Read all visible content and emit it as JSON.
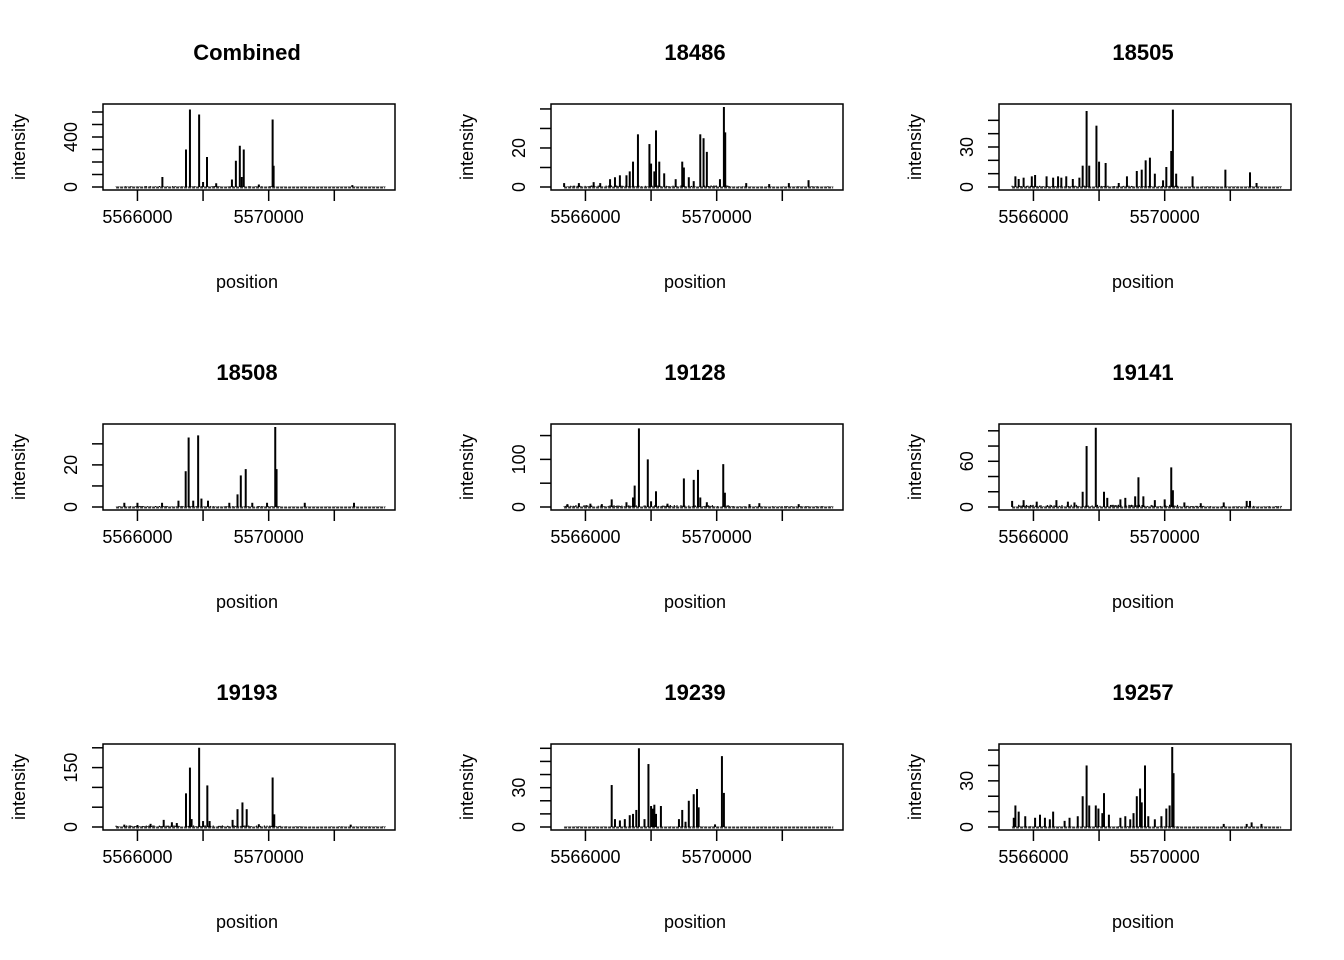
{
  "figure": {
    "layout": "3x3 grid of intensity-vs-position spike plots"
  },
  "chart_data": [
    {
      "type": "bar",
      "title": "Combined",
      "xlabel": "position",
      "ylabel": "intensity",
      "xlim": [
        5564950,
        5573850
      ],
      "ylim": [
        0,
        640
      ],
      "x_ticks": [
        5566000,
        5568000,
        5570000,
        5572000
      ],
      "x_tick_labels": [
        "5566000",
        "",
        "5570000",
        ""
      ],
      "y_ticks": [
        0,
        100,
        200,
        300,
        400,
        500,
        600
      ],
      "y_tick_labels": [
        "0",
        "",
        "",
        "",
        "400",
        "",
        ""
      ],
      "background_level": 8,
      "peaks": [
        [
          5566760,
          80
        ],
        [
          5567480,
          300
        ],
        [
          5567600,
          620
        ],
        [
          5567880,
          580
        ],
        [
          5568000,
          40
        ],
        [
          5568120,
          240
        ],
        [
          5568400,
          30
        ],
        [
          5568880,
          60
        ],
        [
          5569000,
          210
        ],
        [
          5569120,
          330
        ],
        [
          5569180,
          80
        ],
        [
          5569240,
          300
        ],
        [
          5569700,
          20
        ],
        [
          5570120,
          540
        ],
        [
          5570150,
          170
        ],
        [
          5572550,
          15
        ]
      ]
    },
    {
      "type": "bar",
      "title": "18486",
      "xlabel": "position",
      "ylabel": "intensity",
      "xlim": [
        5564950,
        5573850
      ],
      "ylim": [
        0,
        41
      ],
      "x_ticks": [
        5566000,
        5568000,
        5570000,
        5572000
      ],
      "x_tick_labels": [
        "5566000",
        "",
        "5570000",
        ""
      ],
      "y_ticks": [
        0,
        10,
        20,
        30,
        40
      ],
      "y_tick_labels": [
        "0",
        "",
        "20",
        "",
        ""
      ],
      "background_level": 0.8,
      "peaks": [
        [
          5565350,
          2
        ],
        [
          5565800,
          2
        ],
        [
          5566250,
          2.5
        ],
        [
          5566450,
          2
        ],
        [
          5566750,
          4
        ],
        [
          5566900,
          5
        ],
        [
          5567050,
          6
        ],
        [
          5567250,
          6
        ],
        [
          5567350,
          8
        ],
        [
          5567450,
          13
        ],
        [
          5567600,
          27
        ],
        [
          5567950,
          22
        ],
        [
          5568000,
          12
        ],
        [
          5568100,
          8
        ],
        [
          5568150,
          29
        ],
        [
          5568250,
          13
        ],
        [
          5568400,
          7
        ],
        [
          5568750,
          4
        ],
        [
          5568950,
          13
        ],
        [
          5569000,
          10
        ],
        [
          5569150,
          5
        ],
        [
          5569300,
          3
        ],
        [
          5569500,
          27
        ],
        [
          5569600,
          25
        ],
        [
          5569700,
          18
        ],
        [
          5570100,
          4
        ],
        [
          5570220,
          41
        ],
        [
          5570260,
          28
        ],
        [
          5570900,
          2
        ],
        [
          5571600,
          1.5
        ],
        [
          5572200,
          2
        ],
        [
          5572800,
          3.5
        ]
      ]
    },
    {
      "type": "bar",
      "title": "18505",
      "xlabel": "position",
      "ylabel": "intensity",
      "xlim": [
        5564950,
        5573850
      ],
      "ylim": [
        0,
        60
      ],
      "x_ticks": [
        5566000,
        5568000,
        5570000,
        5572000
      ],
      "x_tick_labels": [
        "5566000",
        "",
        "5570000",
        ""
      ],
      "y_ticks": [
        0,
        10,
        20,
        30,
        40,
        50
      ],
      "y_tick_labels": [
        "0",
        "",
        "",
        "30",
        "",
        ""
      ],
      "background_level": 1,
      "peaks": [
        [
          5565450,
          8
        ],
        [
          5565550,
          6
        ],
        [
          5565700,
          7
        ],
        [
          5565950,
          8
        ],
        [
          5566050,
          9
        ],
        [
          5566400,
          8
        ],
        [
          5566600,
          7
        ],
        [
          5566750,
          8
        ],
        [
          5566850,
          7
        ],
        [
          5567000,
          8
        ],
        [
          5567200,
          6
        ],
        [
          5567400,
          7
        ],
        [
          5567500,
          16
        ],
        [
          5567620,
          57
        ],
        [
          5567700,
          16
        ],
        [
          5567920,
          46
        ],
        [
          5568000,
          19
        ],
        [
          5568200,
          18
        ],
        [
          5568600,
          3
        ],
        [
          5568850,
          8
        ],
        [
          5569150,
          12
        ],
        [
          5569300,
          13
        ],
        [
          5569420,
          20
        ],
        [
          5569550,
          22
        ],
        [
          5569700,
          10
        ],
        [
          5569950,
          5
        ],
        [
          5570050,
          15
        ],
        [
          5570200,
          27
        ],
        [
          5570250,
          58
        ],
        [
          5570350,
          10
        ],
        [
          5570850,
          8
        ],
        [
          5571850,
          13
        ],
        [
          5572600,
          11
        ],
        [
          5572800,
          3
        ]
      ]
    },
    {
      "type": "bar",
      "title": "18508",
      "xlabel": "position",
      "ylabel": "intensity",
      "xlim": [
        5564950,
        5573850
      ],
      "ylim": [
        0,
        38
      ],
      "x_ticks": [
        5566000,
        5568000,
        5570000,
        5572000
      ],
      "x_tick_labels": [
        "5566000",
        "",
        "5570000",
        ""
      ],
      "y_ticks": [
        0,
        10,
        20,
        30
      ],
      "y_tick_labels": [
        "0",
        "",
        "20",
        ""
      ],
      "background_level": 0.5,
      "peaks": [
        [
          5565600,
          2
        ],
        [
          5566000,
          2
        ],
        [
          5566750,
          2
        ],
        [
          5567250,
          3
        ],
        [
          5567470,
          17
        ],
        [
          5567560,
          33
        ],
        [
          5567700,
          3
        ],
        [
          5567850,
          34
        ],
        [
          5567950,
          4
        ],
        [
          5568150,
          3
        ],
        [
          5568800,
          2
        ],
        [
          5569050,
          6
        ],
        [
          5569150,
          15
        ],
        [
          5569300,
          18
        ],
        [
          5569500,
          2
        ],
        [
          5569950,
          2
        ],
        [
          5570200,
          38
        ],
        [
          5570240,
          18
        ],
        [
          5571100,
          2
        ],
        [
          5572600,
          2
        ]
      ]
    },
    {
      "type": "bar",
      "title": "19128",
      "xlabel": "position",
      "ylabel": "intensity",
      "xlim": [
        5564950,
        5573850
      ],
      "ylim": [
        0,
        168
      ],
      "x_ticks": [
        5566000,
        5568000,
        5570000,
        5572000
      ],
      "x_tick_labels": [
        "5566000",
        "",
        "5570000",
        ""
      ],
      "y_ticks": [
        0,
        50,
        100,
        150
      ],
      "y_tick_labels": [
        "0",
        "",
        "100",
        ""
      ],
      "background_level": 4,
      "peaks": [
        [
          5565450,
          6
        ],
        [
          5565800,
          8
        ],
        [
          5566150,
          7
        ],
        [
          5566500,
          6
        ],
        [
          5566800,
          16
        ],
        [
          5567250,
          10
        ],
        [
          5567450,
          20
        ],
        [
          5567500,
          45
        ],
        [
          5567630,
          165
        ],
        [
          5567900,
          100
        ],
        [
          5568000,
          12
        ],
        [
          5568150,
          33
        ],
        [
          5568500,
          7
        ],
        [
          5569000,
          60
        ],
        [
          5569300,
          57
        ],
        [
          5569430,
          78
        ],
        [
          5569500,
          20
        ],
        [
          5569700,
          10
        ],
        [
          5570200,
          90
        ],
        [
          5570250,
          30
        ],
        [
          5571000,
          6
        ],
        [
          5571300,
          8
        ],
        [
          5572500,
          6
        ]
      ]
    },
    {
      "type": "bar",
      "title": "19141",
      "xlabel": "position",
      "ylabel": "intensity",
      "xlim": [
        5564950,
        5573850
      ],
      "ylim": [
        0,
        105
      ],
      "x_ticks": [
        5566000,
        5568000,
        5570000,
        5572000
      ],
      "x_tick_labels": [
        "5566000",
        "",
        "5570000",
        ""
      ],
      "y_ticks": [
        0,
        20,
        40,
        60,
        80,
        100
      ],
      "y_tick_labels": [
        "0",
        "",
        "",
        "60",
        "",
        ""
      ],
      "background_level": 3,
      "peaks": [
        [
          5565350,
          8
        ],
        [
          5565700,
          9
        ],
        [
          5566100,
          7
        ],
        [
          5566700,
          9
        ],
        [
          5567050,
          7
        ],
        [
          5567250,
          6
        ],
        [
          5567500,
          20
        ],
        [
          5567620,
          80
        ],
        [
          5567900,
          104
        ],
        [
          5568150,
          20
        ],
        [
          5568250,
          12
        ],
        [
          5568650,
          10
        ],
        [
          5568800,
          12
        ],
        [
          5569100,
          14
        ],
        [
          5569200,
          39
        ],
        [
          5569350,
          14
        ],
        [
          5569700,
          9
        ],
        [
          5570000,
          10
        ],
        [
          5570200,
          52
        ],
        [
          5570250,
          22
        ],
        [
          5570600,
          6
        ],
        [
          5571100,
          5
        ],
        [
          5571800,
          6
        ],
        [
          5572500,
          8
        ],
        [
          5572600,
          8
        ]
      ]
    },
    {
      "type": "bar",
      "title": "19193",
      "xlabel": "position",
      "ylabel": "intensity",
      "xlim": [
        5564950,
        5573850
      ],
      "ylim": [
        0,
        202
      ],
      "x_ticks": [
        5566000,
        5568000,
        5570000,
        5572000
      ],
      "x_tick_labels": [
        "5566000",
        "",
        "5570000",
        ""
      ],
      "y_ticks": [
        0,
        50,
        100,
        150,
        200
      ],
      "y_tick_labels": [
        "0",
        "",
        "",
        "150",
        ""
      ],
      "background_level": 4,
      "peaks": [
        [
          5565600,
          6
        ],
        [
          5566000,
          5
        ],
        [
          5566400,
          8
        ],
        [
          5566800,
          18
        ],
        [
          5567050,
          12
        ],
        [
          5567200,
          10
        ],
        [
          5567480,
          85
        ],
        [
          5567600,
          150
        ],
        [
          5567650,
          20
        ],
        [
          5567880,
          200
        ],
        [
          5568000,
          15
        ],
        [
          5568130,
          105
        ],
        [
          5568200,
          15
        ],
        [
          5568900,
          18
        ],
        [
          5569050,
          45
        ],
        [
          5569200,
          62
        ],
        [
          5569330,
          45
        ],
        [
          5569700,
          7
        ],
        [
          5570120,
          125
        ],
        [
          5570170,
          32
        ],
        [
          5572500,
          6
        ]
      ]
    },
    {
      "type": "bar",
      "title": "19239",
      "xlabel": "position",
      "ylabel": "intensity",
      "xlim": [
        5564950,
        5573850
      ],
      "ylim": [
        0,
        61
      ],
      "x_ticks": [
        5566000,
        5568000,
        5570000,
        5572000
      ],
      "x_tick_labels": [
        "5566000",
        "",
        "5570000",
        ""
      ],
      "y_ticks": [
        0,
        10,
        20,
        30,
        40,
        50,
        60
      ],
      "y_tick_labels": [
        "0",
        "",
        "",
        "30",
        "",
        "",
        ""
      ],
      "background_level": 0.5,
      "peaks": [
        [
          5566800,
          32
        ],
        [
          5566900,
          6
        ],
        [
          5567050,
          5
        ],
        [
          5567200,
          6
        ],
        [
          5567350,
          9
        ],
        [
          5567450,
          10
        ],
        [
          5567550,
          13
        ],
        [
          5567630,
          60
        ],
        [
          5567800,
          6
        ],
        [
          5567920,
          48
        ],
        [
          5568000,
          16
        ],
        [
          5568050,
          14
        ],
        [
          5568100,
          17
        ],
        [
          5568150,
          10
        ],
        [
          5568300,
          16
        ],
        [
          5568850,
          6
        ],
        [
          5568950,
          13
        ],
        [
          5569050,
          4
        ],
        [
          5569150,
          20
        ],
        [
          5569300,
          25
        ],
        [
          5569400,
          29
        ],
        [
          5569450,
          15
        ],
        [
          5569950,
          2
        ],
        [
          5570160,
          54
        ],
        [
          5570220,
          26
        ]
      ]
    },
    {
      "type": "bar",
      "title": "19257",
      "xlabel": "position",
      "ylabel": "intensity",
      "xlim": [
        5564950,
        5573850
      ],
      "ylim": [
        0,
        52
      ],
      "x_ticks": [
        5566000,
        5568000,
        5570000,
        5572000
      ],
      "x_tick_labels": [
        "5566000",
        "",
        "5570000",
        ""
      ],
      "y_ticks": [
        0,
        10,
        20,
        30,
        40,
        50
      ],
      "y_tick_labels": [
        "0",
        "",
        "",
        "30",
        "",
        ""
      ],
      "background_level": 0.5,
      "peaks": [
        [
          5565400,
          6
        ],
        [
          5565450,
          14
        ],
        [
          5565550,
          10
        ],
        [
          5565750,
          7
        ],
        [
          5566050,
          6
        ],
        [
          5566200,
          8
        ],
        [
          5566350,
          6
        ],
        [
          5566500,
          5
        ],
        [
          5566600,
          10
        ],
        [
          5566950,
          4
        ],
        [
          5567100,
          6
        ],
        [
          5567350,
          7
        ],
        [
          5567500,
          20
        ],
        [
          5567620,
          40
        ],
        [
          5567700,
          14
        ],
        [
          5567900,
          14
        ],
        [
          5567980,
          12
        ],
        [
          5568100,
          9
        ],
        [
          5568150,
          22
        ],
        [
          5568300,
          8
        ],
        [
          5568650,
          6
        ],
        [
          5568800,
          7
        ],
        [
          5568950,
          5
        ],
        [
          5569050,
          9
        ],
        [
          5569150,
          20
        ],
        [
          5569250,
          25
        ],
        [
          5569300,
          16
        ],
        [
          5569400,
          40
        ],
        [
          5569500,
          7
        ],
        [
          5569700,
          5
        ],
        [
          5569900,
          7
        ],
        [
          5570050,
          12
        ],
        [
          5570150,
          14
        ],
        [
          5570230,
          52
        ],
        [
          5570270,
          35
        ],
        [
          5571800,
          2
        ],
        [
          5572500,
          2
        ],
        [
          5572650,
          3
        ],
        [
          5572950,
          2
        ]
      ]
    }
  ]
}
